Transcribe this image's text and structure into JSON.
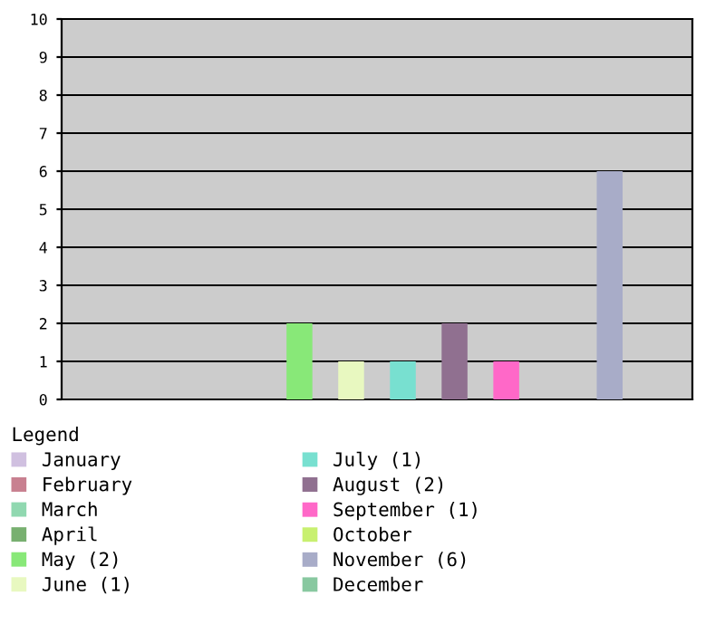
{
  "chart_data": {
    "type": "bar",
    "categories": [
      null,
      null,
      null,
      null,
      null,
      null,
      null,
      null,
      null,
      null,
      null,
      null
    ],
    "series": [
      {
        "name": "January",
        "color": "#d0c0e0",
        "values": [
          0,
          null,
          null,
          null,
          null,
          null,
          null,
          null,
          null,
          null,
          null,
          null
        ]
      },
      {
        "name": "February",
        "color": "#c88090",
        "values": [
          null,
          0,
          null,
          null,
          null,
          null,
          null,
          null,
          null,
          null,
          null,
          null
        ]
      },
      {
        "name": "March",
        "color": "#90d8b0",
        "values": [
          null,
          null,
          0,
          null,
          null,
          null,
          null,
          null,
          null,
          null,
          null,
          null
        ]
      },
      {
        "name": "April",
        "color": "#78b070",
        "values": [
          null,
          null,
          null,
          0,
          null,
          null,
          null,
          null,
          null,
          null,
          null,
          null
        ]
      },
      {
        "name": "May (2)",
        "color": "#88e878",
        "values": [
          null,
          null,
          null,
          null,
          2,
          null,
          null,
          null,
          null,
          null,
          null,
          null
        ]
      },
      {
        "name": "June (1)",
        "color": "#e8f8c0",
        "values": [
          null,
          null,
          null,
          null,
          null,
          1,
          null,
          null,
          null,
          null,
          null,
          null
        ]
      },
      {
        "name": "July (1)",
        "color": "#78e0d0",
        "values": [
          null,
          null,
          null,
          null,
          null,
          null,
          1,
          null,
          null,
          null,
          null,
          null
        ]
      },
      {
        "name": "August (2)",
        "color": "#907090",
        "values": [
          null,
          null,
          null,
          null,
          null,
          null,
          null,
          2,
          null,
          null,
          null,
          null
        ]
      },
      {
        "name": "September (1)",
        "color": "#ff68c8",
        "values": [
          null,
          null,
          null,
          null,
          null,
          null,
          null,
          null,
          1,
          null,
          null,
          null
        ]
      },
      {
        "name": "October",
        "color": "#c8f070",
        "values": [
          null,
          null,
          null,
          null,
          null,
          null,
          null,
          null,
          null,
          0,
          null,
          null
        ]
      },
      {
        "name": "November (6)",
        "color": "#a8acc8",
        "values": [
          null,
          null,
          null,
          null,
          null,
          null,
          null,
          null,
          null,
          null,
          6,
          null
        ]
      },
      {
        "name": "December",
        "color": "#88c8a0",
        "values": [
          null,
          null,
          null,
          null,
          null,
          null,
          null,
          null,
          null,
          null,
          null,
          0
        ]
      }
    ],
    "legend_title": "Legend",
    "ylim": [
      0,
      10
    ],
    "yticks": [
      0,
      1,
      2,
      3,
      4,
      5,
      6,
      7,
      8,
      9,
      10
    ],
    "grid": "y",
    "legend": "bottom",
    "tick_labels": "y"
  }
}
